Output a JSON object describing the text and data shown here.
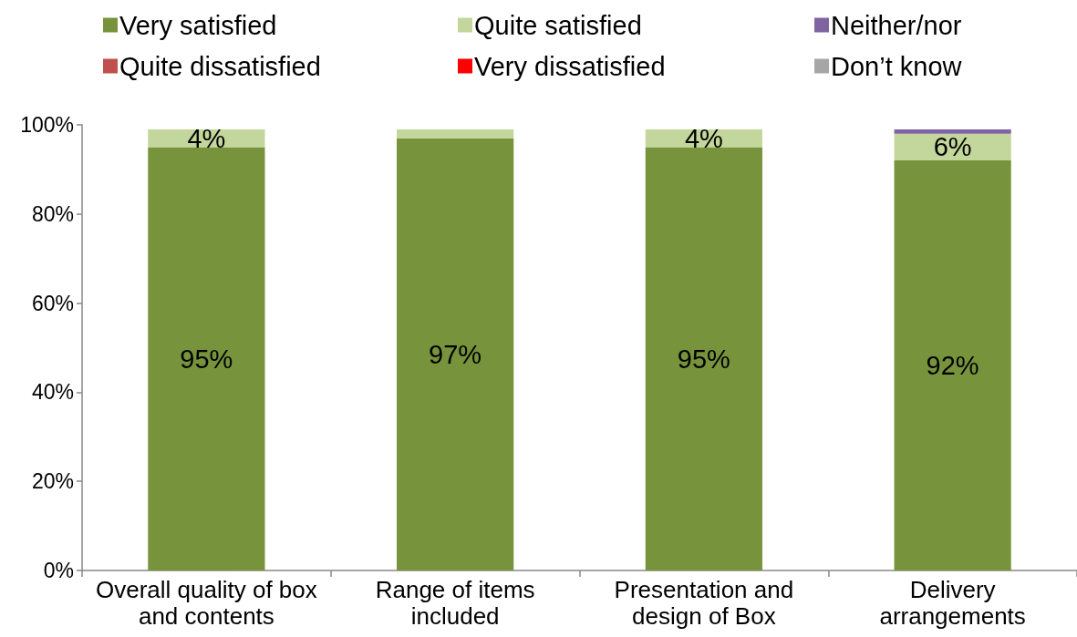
{
  "chart_data": {
    "type": "bar",
    "stacked": true,
    "legend": "top",
    "categories": [
      "Overall quality of box\nand contents",
      "Range of items\nincluded",
      "Presentation and\ndesign of Box",
      "Delivery\narrangements"
    ],
    "series": [
      {
        "name": "Very satisfied",
        "color": "#77933c",
        "values": [
          95,
          97,
          95,
          92
        ],
        "value_labels": [
          "95%",
          "97%",
          "95%",
          "92%"
        ]
      },
      {
        "name": "Quite satisfied",
        "color": "#c3d69b",
        "values": [
          4,
          2,
          4,
          6
        ],
        "value_labels": [
          "4%",
          null,
          "4%",
          "6%"
        ]
      },
      {
        "name": "Neither/nor",
        "color": "#8064a2",
        "values": [
          null,
          null,
          null,
          1
        ]
      },
      {
        "name": "Quite dissatisfied",
        "color": "#c0504d",
        "values": [
          null,
          null,
          null,
          null
        ]
      },
      {
        "name": "Very dissatisfied",
        "color": "#ff0000",
        "values": [
          null,
          null,
          null,
          null
        ]
      },
      {
        "name": "Don’t know",
        "color": "#a6a6a6",
        "values": [
          null,
          null,
          null,
          null
        ]
      }
    ],
    "ylim": [
      0,
      100
    ],
    "yticks": [
      {
        "value": 0,
        "label": "0%"
      },
      {
        "value": 20,
        "label": "20%"
      },
      {
        "value": 40,
        "label": "40%"
      },
      {
        "value": 60,
        "label": "60%"
      },
      {
        "value": 80,
        "label": "80%"
      },
      {
        "value": 100,
        "label": "100%"
      }
    ]
  }
}
